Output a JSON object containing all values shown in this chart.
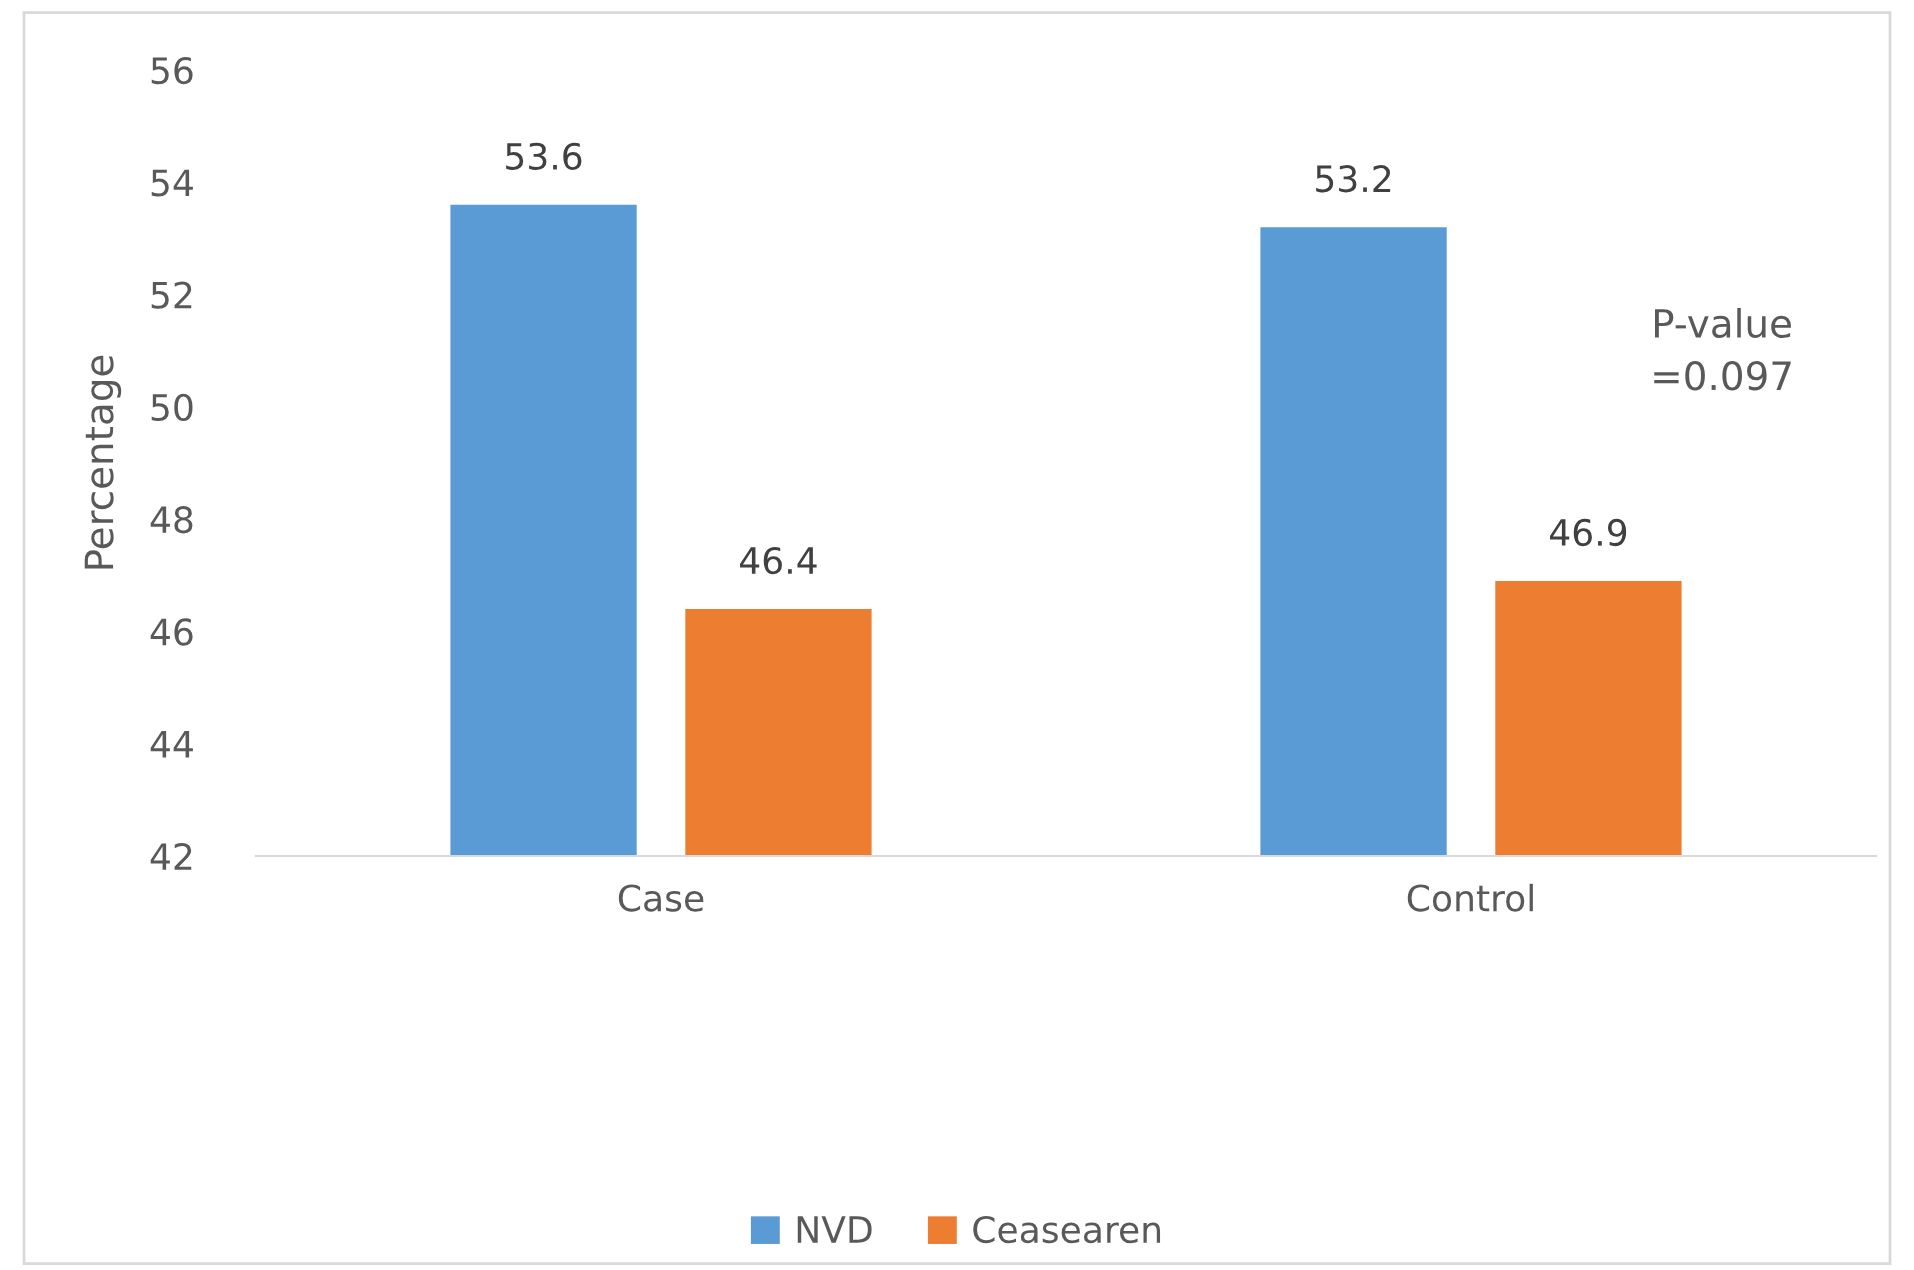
{
  "chart_data": {
    "type": "bar",
    "ylabel": "Percentage",
    "categories": [
      "Case",
      "Control"
    ],
    "series": [
      {
        "name": "NVD",
        "color": "#5b9bd5",
        "values": [
          53.6,
          53.2
        ]
      },
      {
        "name": "Ceasearen",
        "color": "#ed7d31",
        "values": [
          46.4,
          46.9
        ]
      }
    ],
    "ylim": [
      42,
      56
    ],
    "yticks": [
      42,
      44,
      46,
      48,
      50,
      52,
      54,
      56
    ],
    "data_labels": true,
    "grid": false,
    "legend": "bottom",
    "annotations": [
      "P-value\n=0.097"
    ]
  }
}
